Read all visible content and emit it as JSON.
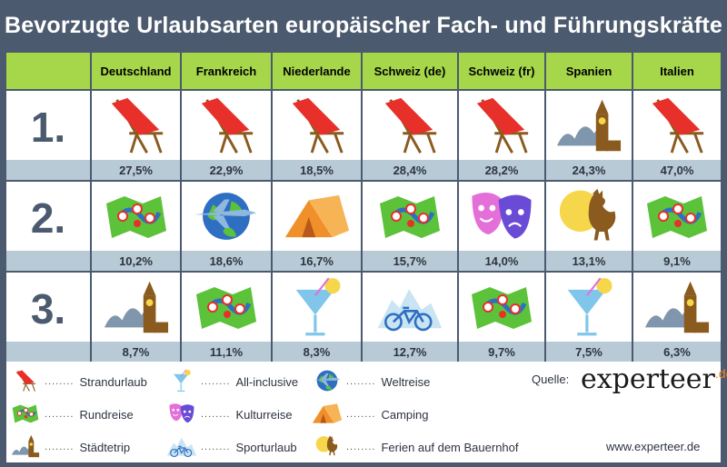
{
  "title": "Bevorzugte Urlaubsarten europäischer Fach- und Führungskräfte",
  "columns": [
    "Deutschland",
    "Frankreich",
    "Niederlande",
    "Schweiz (de)",
    "Schweiz (fr)",
    "Spanien",
    "Italien"
  ],
  "ranks": [
    "1.",
    "2.",
    "3."
  ],
  "rows": [
    {
      "cells": [
        {
          "icon": "deckchair-icon",
          "value": "27,5%"
        },
        {
          "icon": "deckchair-icon",
          "value": "22,9%"
        },
        {
          "icon": "deckchair-icon",
          "value": "18,5%"
        },
        {
          "icon": "deckchair-icon",
          "value": "28,4%"
        },
        {
          "icon": "deckchair-icon",
          "value": "28,2%"
        },
        {
          "icon": "city-icon",
          "value": "24,3%"
        },
        {
          "icon": "deckchair-icon",
          "value": "47,0%"
        }
      ]
    },
    {
      "cells": [
        {
          "icon": "map-icon",
          "value": "10,2%"
        },
        {
          "icon": "globe-plane-icon",
          "value": "18,6%"
        },
        {
          "icon": "tent-icon",
          "value": "16,7%"
        },
        {
          "icon": "map-icon",
          "value": "15,7%"
        },
        {
          "icon": "theater-masks-icon",
          "value": "14,0%"
        },
        {
          "icon": "rooster-icon",
          "value": "13,1%"
        },
        {
          "icon": "map-icon",
          "value": "9,1%"
        }
      ]
    },
    {
      "cells": [
        {
          "icon": "city-icon",
          "value": "8,7%"
        },
        {
          "icon": "map-icon",
          "value": "11,1%"
        },
        {
          "icon": "cocktail-icon",
          "value": "8,3%"
        },
        {
          "icon": "bicycle-mountain-icon",
          "value": "12,7%"
        },
        {
          "icon": "map-icon",
          "value": "9,7%"
        },
        {
          "icon": "cocktail-icon",
          "value": "7,5%"
        },
        {
          "icon": "city-icon",
          "value": "6,3%"
        }
      ]
    }
  ],
  "legend": [
    {
      "icon": "deckchair-icon",
      "label": "Strandurlaub"
    },
    {
      "icon": "map-icon",
      "label": "Rundreise"
    },
    {
      "icon": "city-icon",
      "label": "Städtetrip"
    },
    {
      "icon": "cocktail-icon",
      "label": "All-inclusive"
    },
    {
      "icon": "theater-masks-icon",
      "label": "Kulturreise"
    },
    {
      "icon": "bicycle-mountain-icon",
      "label": "Sporturlaub"
    },
    {
      "icon": "globe-plane-icon",
      "label": "Weltreise"
    },
    {
      "icon": "tent-icon",
      "label": "Camping"
    },
    {
      "icon": "rooster-icon",
      "label": "Ferien auf dem Bauernhof"
    }
  ],
  "dots": "........",
  "source_label": "Quelle:",
  "logo_text": "experteer",
  "logo_suffix": ".de",
  "website": "www.experteer.de",
  "colors": {
    "background": "#4b5a6e",
    "header": "#a6d64a",
    "percent_band": "#b8cad6",
    "deckchair": "#e8302a",
    "tent": "#f0902a",
    "globe": "#2e6fc2",
    "masks_pink": "#e46fd8",
    "masks_blue": "#6a4bd6",
    "sun": "#f6d64a",
    "brand_orange": "#f08a1c"
  }
}
